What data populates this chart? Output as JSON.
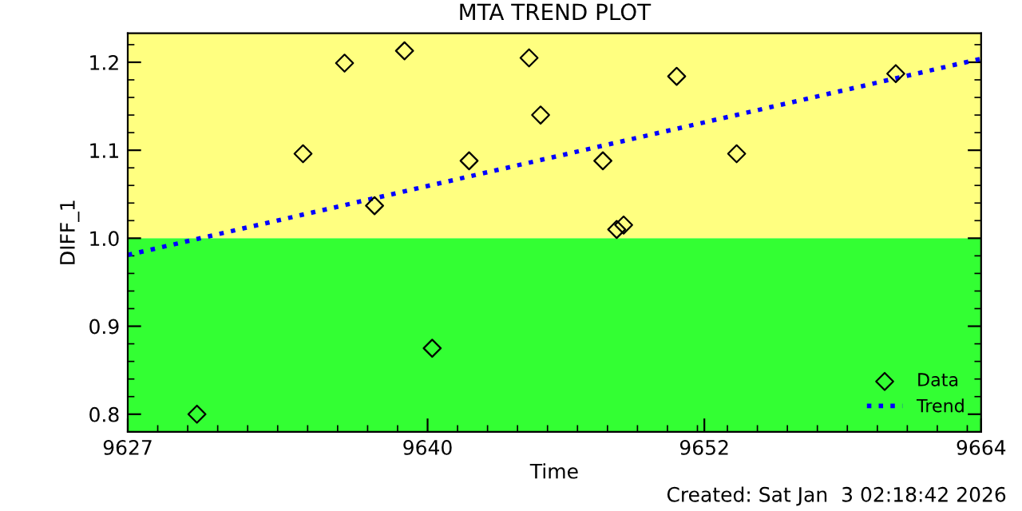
{
  "chart_data": {
    "type": "scatter",
    "title": "MTA TREND PLOT",
    "xlabel": "Time",
    "ylabel": "DIFF_1",
    "annotations": [
      "Created: Sat Jan  3 02:18:42 2026"
    ],
    "series": [
      {
        "name": "Data",
        "color": "#000000",
        "marker": "diamond",
        "x": [
          9630.0,
          9634.6,
          9636.4,
          9637.7,
          9639.0,
          9640.2,
          9641.8,
          9644.4,
          9644.9,
          9647.6,
          9648.2,
          9648.5,
          9650.8,
          9653.4,
          9660.3
        ],
        "values": [
          0.8,
          1.096,
          1.199,
          1.037,
          1.213,
          0.875,
          1.088,
          1.205,
          1.14,
          1.088,
          1.01,
          1.015,
          1.184,
          1.096,
          1.187
        ]
      },
      {
        "name": "Trend",
        "type": "line",
        "color": "#0000ff",
        "line_style": "dotted",
        "x": [
          9627,
          9664
        ],
        "values": [
          0.981,
          1.204
        ]
      }
    ],
    "bands": [
      {
        "axis": "y",
        "from": 0.78,
        "to": 1.0,
        "color": "#33ff33"
      },
      {
        "axis": "y",
        "from": 1.0,
        "to": 1.233,
        "color": "#ffff80"
      }
    ],
    "xlim": [
      9627,
      9664
    ],
    "xticks": [
      9627,
      9640,
      9652,
      9664
    ],
    "ylim": [
      0.78,
      1.233
    ],
    "yticks": [
      0.8,
      0.9,
      {
        "value": 1,
        "label": "1.0"
      },
      1.1,
      1.2
    ],
    "grid": false,
    "legend": "bottom right"
  }
}
